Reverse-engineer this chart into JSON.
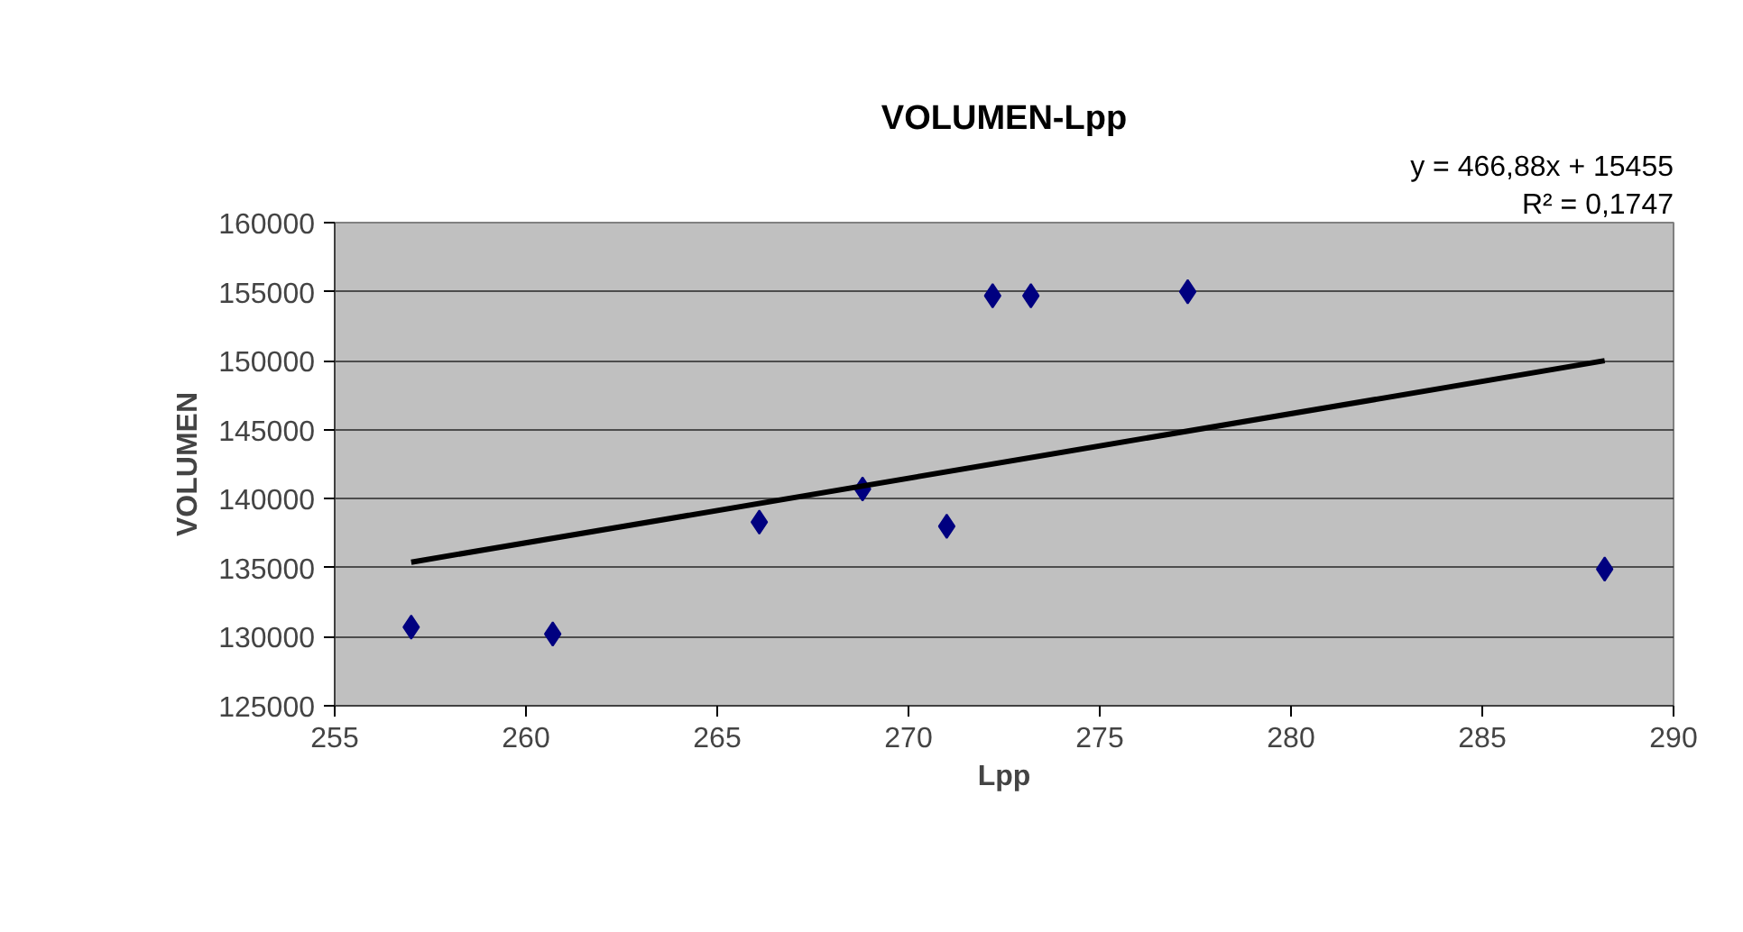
{
  "chart_data": {
    "type": "scatter",
    "title": "VOLUMEN-Lpp",
    "xlabel": "Lpp",
    "ylabel": "VOLUMEN",
    "annotations": [
      "y = 466,88x + 15455",
      "R² = 0,1747"
    ],
    "xlim": [
      255,
      290
    ],
    "xticks": [
      255,
      260,
      265,
      270,
      275,
      280,
      285,
      290
    ],
    "ylim": [
      125000,
      160000
    ],
    "yticks": [
      125000,
      130000,
      135000,
      140000,
      145000,
      150000,
      155000,
      160000
    ],
    "grid": "y",
    "series": [
      {
        "marker": "diamond",
        "color": "#000080",
        "x": [
          257.0,
          260.7,
          266.0,
          266.1,
          268.8,
          271.0,
          272.2,
          273.2,
          277.3,
          288.2
        ],
        "values": [
          130700,
          130200,
          null,
          138300,
          140700,
          138000,
          154700,
          154700,
          155000,
          134900
        ]
      },
      {
        "type": "line",
        "color": "#000000",
        "x": [
          257.0,
          288.2
        ],
        "values": [
          135400,
          150000
        ]
      }
    ]
  }
}
